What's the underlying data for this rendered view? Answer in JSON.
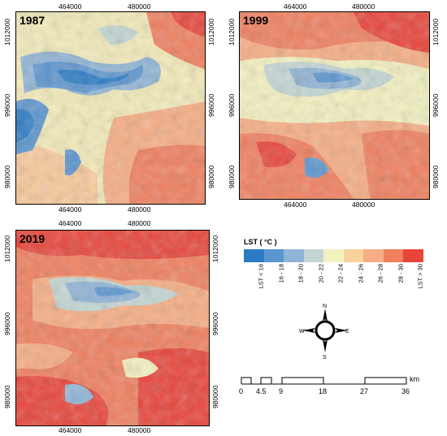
{
  "panels": [
    {
      "year": "1987",
      "x_ticks_top": [
        "464000",
        "480000"
      ],
      "x_ticks_bottom": [
        "464000",
        "480000"
      ],
      "y_ticks_left": [
        "1012000",
        "996000",
        "980000"
      ],
      "y_ticks_right": [
        "1012000",
        "996000",
        "980000"
      ]
    },
    {
      "year": "1999",
      "x_ticks_top": [
        "464000",
        "480000"
      ],
      "x_ticks_bottom": [
        "464000",
        "480000"
      ],
      "y_ticks_left": [
        "1012000",
        "996000",
        "980000"
      ],
      "y_ticks_right": [
        "1012000",
        "996000",
        "980000"
      ]
    },
    {
      "year": "2019",
      "x_ticks_top": [
        "464000",
        "480000"
      ],
      "x_ticks_bottom": [
        "464000",
        "480000"
      ],
      "y_ticks_left": [
        "1012000",
        "996000",
        "980000"
      ],
      "y_ticks_right": [
        "1012000",
        "996000",
        "980000"
      ]
    }
  ],
  "legend": {
    "title": "LST ( °C )",
    "classes": [
      {
        "label": "LST < 16",
        "color": "#2b7bc4"
      },
      {
        "label": "16 - 18",
        "color": "#5b95cf"
      },
      {
        "label": "18 - 20",
        "color": "#8fb4d6"
      },
      {
        "label": "20 - 22",
        "color": "#c3d6d3"
      },
      {
        "label": "22 - 24",
        "color": "#f3f1bf"
      },
      {
        "label": "24 - 26",
        "color": "#f8d49c"
      },
      {
        "label": "26 - 28",
        "color": "#f6ad84"
      },
      {
        "label": "28 - 30",
        "color": "#f07f5e"
      },
      {
        "label": "LST > 30",
        "color": "#e8443a"
      }
    ]
  },
  "compass": {
    "n": "N",
    "s": "S",
    "e": "E",
    "w": "W"
  },
  "scale": {
    "labels": [
      "0",
      "4.5",
      "9",
      "18",
      "27",
      "36"
    ],
    "unit": "km"
  }
}
